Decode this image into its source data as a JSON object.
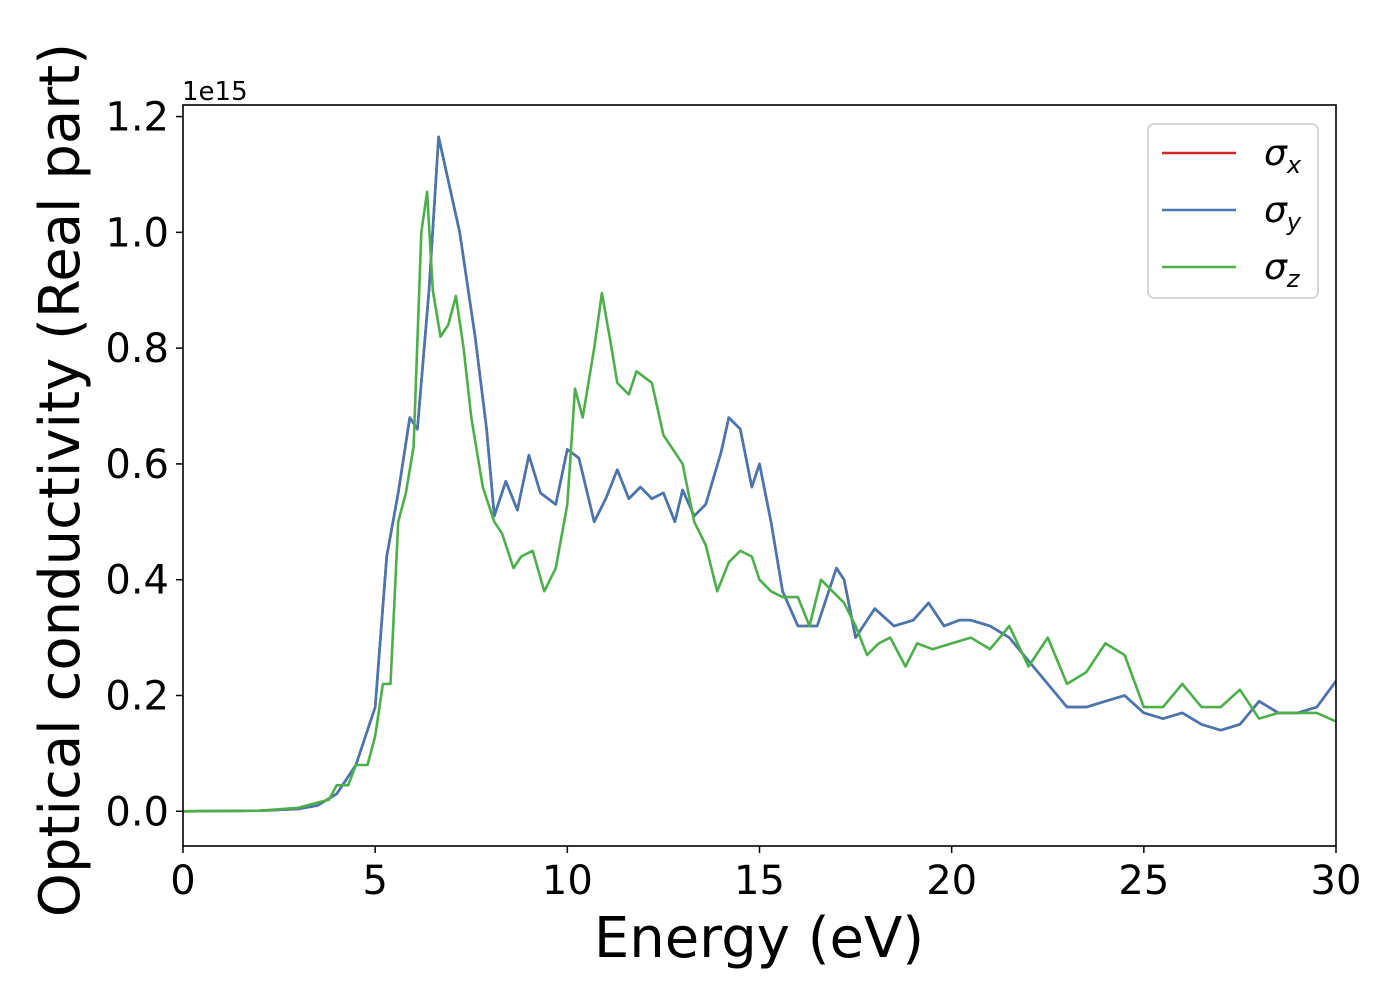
{
  "chart_data": {
    "type": "line",
    "xlabel": "Energy (eV)",
    "ylabel": "Optical conductivity (Real part)",
    "y_offset_label": "1e15",
    "xlim": [
      0,
      30
    ],
    "ylim": [
      -0.06,
      1.22
    ],
    "xticks": [
      0,
      5,
      10,
      15,
      20,
      25,
      30
    ],
    "xtick_labels": [
      "0",
      "5",
      "10",
      "15",
      "20",
      "25",
      "30"
    ],
    "yticks": [
      0.0,
      0.2,
      0.4,
      0.6,
      0.8,
      1.0,
      1.2
    ],
    "ytick_labels": [
      "0.0",
      "0.2",
      "0.4",
      "0.6",
      "0.8",
      "1.0",
      "1.2"
    ],
    "grid": false,
    "legend_position": "top-right",
    "series": [
      {
        "name": "σx",
        "symbol": "σ",
        "subscript": "x",
        "color": "#d62728",
        "x": [
          0,
          2,
          3,
          3.5,
          4,
          4.5,
          5,
          5.3,
          5.6,
          5.9,
          6.1,
          6.4,
          6.65,
          6.9,
          7.2,
          7.6,
          7.9,
          8.1,
          8.4,
          8.7,
          9.0,
          9.3,
          9.7,
          10.0,
          10.3,
          10.7,
          11.0,
          11.3,
          11.6,
          11.9,
          12.2,
          12.5,
          12.8,
          13.0,
          13.3,
          13.6,
          14.0,
          14.2,
          14.5,
          14.8,
          15.0,
          15.3,
          15.6,
          16.0,
          16.5,
          17.0,
          17.2,
          17.5,
          17.8,
          18.0,
          18.5,
          19.0,
          19.4,
          19.8,
          20.2,
          20.5,
          21.0,
          21.5,
          22.0,
          22.5,
          23.0,
          23.5,
          24.0,
          24.5,
          25.0,
          25.5,
          26.0,
          26.5,
          27.0,
          27.5,
          28.0,
          28.5,
          29.0,
          29.5,
          30.0
        ],
        "y": [
          0,
          0.001,
          0.004,
          0.01,
          0.03,
          0.08,
          0.18,
          0.44,
          0.55,
          0.68,
          0.66,
          0.9,
          1.165,
          1.09,
          1.0,
          0.82,
          0.66,
          0.51,
          0.57,
          0.52,
          0.615,
          0.55,
          0.53,
          0.625,
          0.61,
          0.5,
          0.54,
          0.59,
          0.54,
          0.56,
          0.54,
          0.55,
          0.5,
          0.555,
          0.51,
          0.53,
          0.62,
          0.68,
          0.66,
          0.56,
          0.6,
          0.5,
          0.38,
          0.32,
          0.32,
          0.42,
          0.4,
          0.3,
          0.33,
          0.35,
          0.32,
          0.33,
          0.36,
          0.32,
          0.33,
          0.33,
          0.32,
          0.3,
          0.26,
          0.22,
          0.18,
          0.18,
          0.19,
          0.2,
          0.17,
          0.16,
          0.17,
          0.15,
          0.14,
          0.15,
          0.19,
          0.17,
          0.17,
          0.18,
          0.225
        ]
      },
      {
        "name": "σy",
        "symbol": "σ",
        "subscript": "y",
        "color": "#4677b0",
        "x": [
          0,
          2,
          3,
          3.5,
          4,
          4.5,
          5,
          5.3,
          5.6,
          5.9,
          6.1,
          6.4,
          6.65,
          6.9,
          7.2,
          7.6,
          7.9,
          8.1,
          8.4,
          8.7,
          9.0,
          9.3,
          9.7,
          10.0,
          10.3,
          10.7,
          11.0,
          11.3,
          11.6,
          11.9,
          12.2,
          12.5,
          12.8,
          13.0,
          13.3,
          13.6,
          14.0,
          14.2,
          14.5,
          14.8,
          15.0,
          15.3,
          15.6,
          16.0,
          16.5,
          17.0,
          17.2,
          17.5,
          17.8,
          18.0,
          18.5,
          19.0,
          19.4,
          19.8,
          20.2,
          20.5,
          21.0,
          21.5,
          22.0,
          22.5,
          23.0,
          23.5,
          24.0,
          24.5,
          25.0,
          25.5,
          26.0,
          26.5,
          27.0,
          27.5,
          28.0,
          28.5,
          29.0,
          29.5,
          30.0
        ],
        "y": [
          0,
          0.001,
          0.004,
          0.01,
          0.03,
          0.08,
          0.18,
          0.44,
          0.55,
          0.68,
          0.66,
          0.9,
          1.165,
          1.09,
          1.0,
          0.82,
          0.66,
          0.51,
          0.57,
          0.52,
          0.615,
          0.55,
          0.53,
          0.625,
          0.61,
          0.5,
          0.54,
          0.59,
          0.54,
          0.56,
          0.54,
          0.55,
          0.5,
          0.555,
          0.51,
          0.53,
          0.62,
          0.68,
          0.66,
          0.56,
          0.6,
          0.5,
          0.38,
          0.32,
          0.32,
          0.42,
          0.4,
          0.3,
          0.33,
          0.35,
          0.32,
          0.33,
          0.36,
          0.32,
          0.33,
          0.33,
          0.32,
          0.3,
          0.26,
          0.22,
          0.18,
          0.18,
          0.19,
          0.2,
          0.17,
          0.16,
          0.17,
          0.15,
          0.14,
          0.15,
          0.19,
          0.17,
          0.17,
          0.18,
          0.225
        ]
      },
      {
        "name": "σz",
        "symbol": "σ",
        "subscript": "z",
        "color": "#4daf4a",
        "x": [
          0,
          2,
          3,
          3.5,
          3.8,
          4.0,
          4.3,
          4.5,
          4.8,
          5.0,
          5.2,
          5.4,
          5.6,
          5.8,
          6.0,
          6.2,
          6.35,
          6.5,
          6.7,
          6.9,
          7.1,
          7.3,
          7.5,
          7.8,
          8.1,
          8.3,
          8.6,
          8.8,
          9.1,
          9.4,
          9.7,
          10.0,
          10.2,
          10.4,
          10.7,
          10.9,
          11.1,
          11.3,
          11.6,
          11.8,
          12.0,
          12.2,
          12.5,
          12.7,
          13.0,
          13.3,
          13.6,
          13.9,
          14.2,
          14.5,
          14.8,
          15.0,
          15.3,
          15.6,
          16.0,
          16.3,
          16.6,
          16.9,
          17.2,
          17.5,
          17.8,
          18.1,
          18.4,
          18.8,
          19.1,
          19.5,
          20.0,
          20.5,
          21.0,
          21.5,
          22.0,
          22.5,
          23.0,
          23.5,
          24.0,
          24.5,
          25.0,
          25.5,
          26.0,
          26.5,
          27.0,
          27.5,
          28.0,
          28.5,
          29.0,
          29.5,
          30.0
        ],
        "y": [
          0,
          0.001,
          0.006,
          0.015,
          0.02,
          0.045,
          0.045,
          0.08,
          0.08,
          0.13,
          0.22,
          0.22,
          0.5,
          0.55,
          0.63,
          1.0,
          1.07,
          0.9,
          0.82,
          0.84,
          0.89,
          0.8,
          0.68,
          0.56,
          0.5,
          0.48,
          0.42,
          0.44,
          0.45,
          0.38,
          0.42,
          0.53,
          0.73,
          0.68,
          0.8,
          0.895,
          0.82,
          0.74,
          0.72,
          0.76,
          0.75,
          0.74,
          0.65,
          0.63,
          0.6,
          0.5,
          0.46,
          0.38,
          0.43,
          0.45,
          0.44,
          0.4,
          0.38,
          0.37,
          0.37,
          0.32,
          0.4,
          0.38,
          0.36,
          0.32,
          0.27,
          0.29,
          0.3,
          0.25,
          0.29,
          0.28,
          0.29,
          0.3,
          0.28,
          0.32,
          0.25,
          0.3,
          0.22,
          0.24,
          0.29,
          0.27,
          0.18,
          0.18,
          0.22,
          0.18,
          0.18,
          0.21,
          0.16,
          0.17,
          0.17,
          0.17,
          0.155
        ]
      }
    ]
  }
}
